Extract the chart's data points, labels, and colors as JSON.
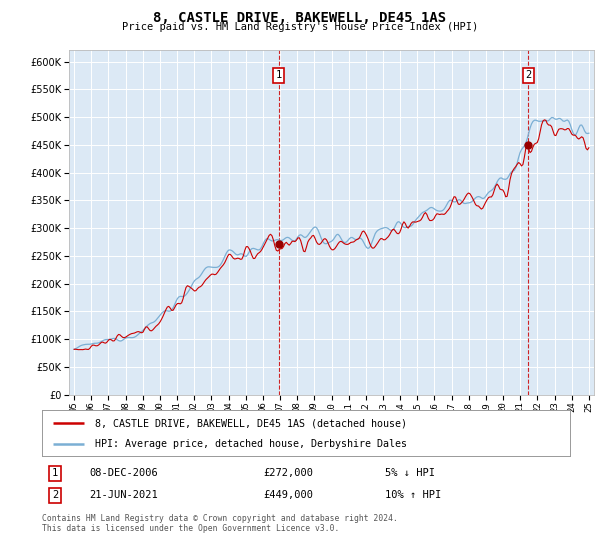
{
  "title": "8, CASTLE DRIVE, BAKEWELL, DE45 1AS",
  "subtitle": "Price paid vs. HM Land Registry's House Price Index (HPI)",
  "background_color": "#dce9f5",
  "plot_bg_color": "#dce9f5",
  "ylim": [
    0,
    620000
  ],
  "yticks": [
    0,
    50000,
    100000,
    150000,
    200000,
    250000,
    300000,
    350000,
    400000,
    450000,
    500000,
    550000,
    600000
  ],
  "x_start_year": 1995,
  "x_end_year": 2025,
  "annotation1": {
    "label": "1",
    "year": 2006.92,
    "price": 272000,
    "text_date": "08-DEC-2006",
    "text_price": "£272,000",
    "text_note": "5% ↓ HPI"
  },
  "annotation2": {
    "label": "2",
    "year": 2021.47,
    "price": 449000,
    "text_date": "21-JUN-2021",
    "text_price": "£449,000",
    "text_note": "10% ↑ HPI"
  },
  "legend_line1": "8, CASTLE DRIVE, BAKEWELL, DE45 1AS (detached house)",
  "legend_line2": "HPI: Average price, detached house, Derbyshire Dales",
  "footer": "Contains HM Land Registry data © Crown copyright and database right 2024.\nThis data is licensed under the Open Government Licence v3.0.",
  "hpi_color": "#7bafd4",
  "price_color": "#cc0000",
  "marker_color": "#990000",
  "xtick_labels": [
    "95",
    "96",
    "97",
    "98",
    "99",
    "00",
    "01",
    "02",
    "03",
    "04",
    "05",
    "06",
    "07",
    "08",
    "09",
    "10",
    "11",
    "12",
    "13",
    "14",
    "15",
    "16",
    "17",
    "18",
    "19",
    "20",
    "21",
    "22",
    "23",
    "24",
    "25"
  ]
}
